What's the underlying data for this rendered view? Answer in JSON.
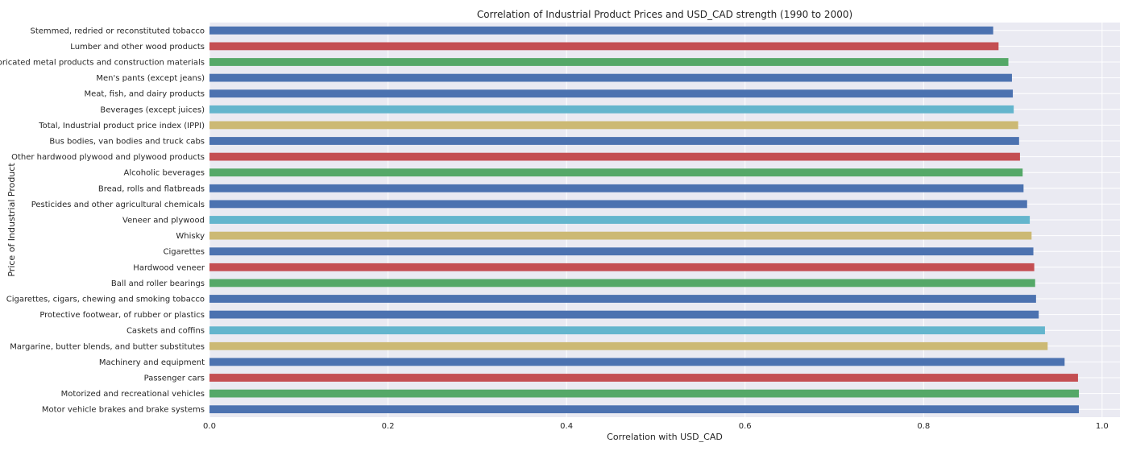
{
  "chart_data": {
    "type": "bar",
    "orientation": "horizontal",
    "title": "Correlation of Industrial Product Prices and USD_CAD strength (1990 to 2000)",
    "xlabel": "Correlation with USD_CAD",
    "ylabel": "Price of Industrial Product",
    "xlim": [
      0,
      1.02
    ],
    "xticks": [
      "0.0",
      "0.2",
      "0.4",
      "0.6",
      "0.8",
      "1.0"
    ],
    "grid": true,
    "background_color": "#EAEAF2",
    "palette": [
      "#4C72B0",
      "#55A868",
      "#C44E52",
      "#8172B2",
      "#CCB974",
      "#64B5CD"
    ],
    "categories": [
      "Stemmed, redried or reconstituted tobacco",
      "Lumber and other wood products",
      "Fabricated metal products and construction materials",
      "Men's pants (except jeans)",
      "Meat, fish, and dairy products",
      "Beverages (except juices)",
      "Total, Industrial product price index (IPPI)",
      "Bus bodies, van bodies and truck cabs",
      "Other hardwood plywood and plywood products",
      "Alcoholic beverages",
      "Bread, rolls and flatbreads",
      "Pesticides and other agricultural chemicals",
      "Veneer and plywood",
      "Whisky",
      "Cigarettes",
      "Hardwood veneer",
      "Ball and roller bearings",
      "Cigarettes, cigars, chewing and smoking tobacco",
      "Protective footwear, of rubber or plastics",
      "Caskets and coffins",
      "Margarine, butter blends, and butter substitutes",
      "Machinery and equipment",
      "Passenger cars",
      "Motorized and recreational vehicles",
      "Motor vehicle brakes and brake systems"
    ],
    "values": [
      0.878,
      0.884,
      0.895,
      0.899,
      0.9,
      0.901,
      0.906,
      0.907,
      0.908,
      0.911,
      0.912,
      0.916,
      0.919,
      0.921,
      0.923,
      0.924,
      0.925,
      0.926,
      0.929,
      0.936,
      0.939,
      0.958,
      0.973,
      0.974,
      0.974
    ],
    "colors": [
      "#4C72B0",
      "#C44E52",
      "#55A868",
      "#4C72B0",
      "#4C72B0",
      "#64B5CD",
      "#CCB974",
      "#4C72B0",
      "#C44E52",
      "#55A868",
      "#4C72B0",
      "#4C72B0",
      "#64B5CD",
      "#CCB974",
      "#4C72B0",
      "#C44E52",
      "#55A868",
      "#4C72B0",
      "#4C72B0",
      "#64B5CD",
      "#CCB974",
      "#4C72B0",
      "#C44E52",
      "#55A868",
      "#4C72B0"
    ]
  }
}
